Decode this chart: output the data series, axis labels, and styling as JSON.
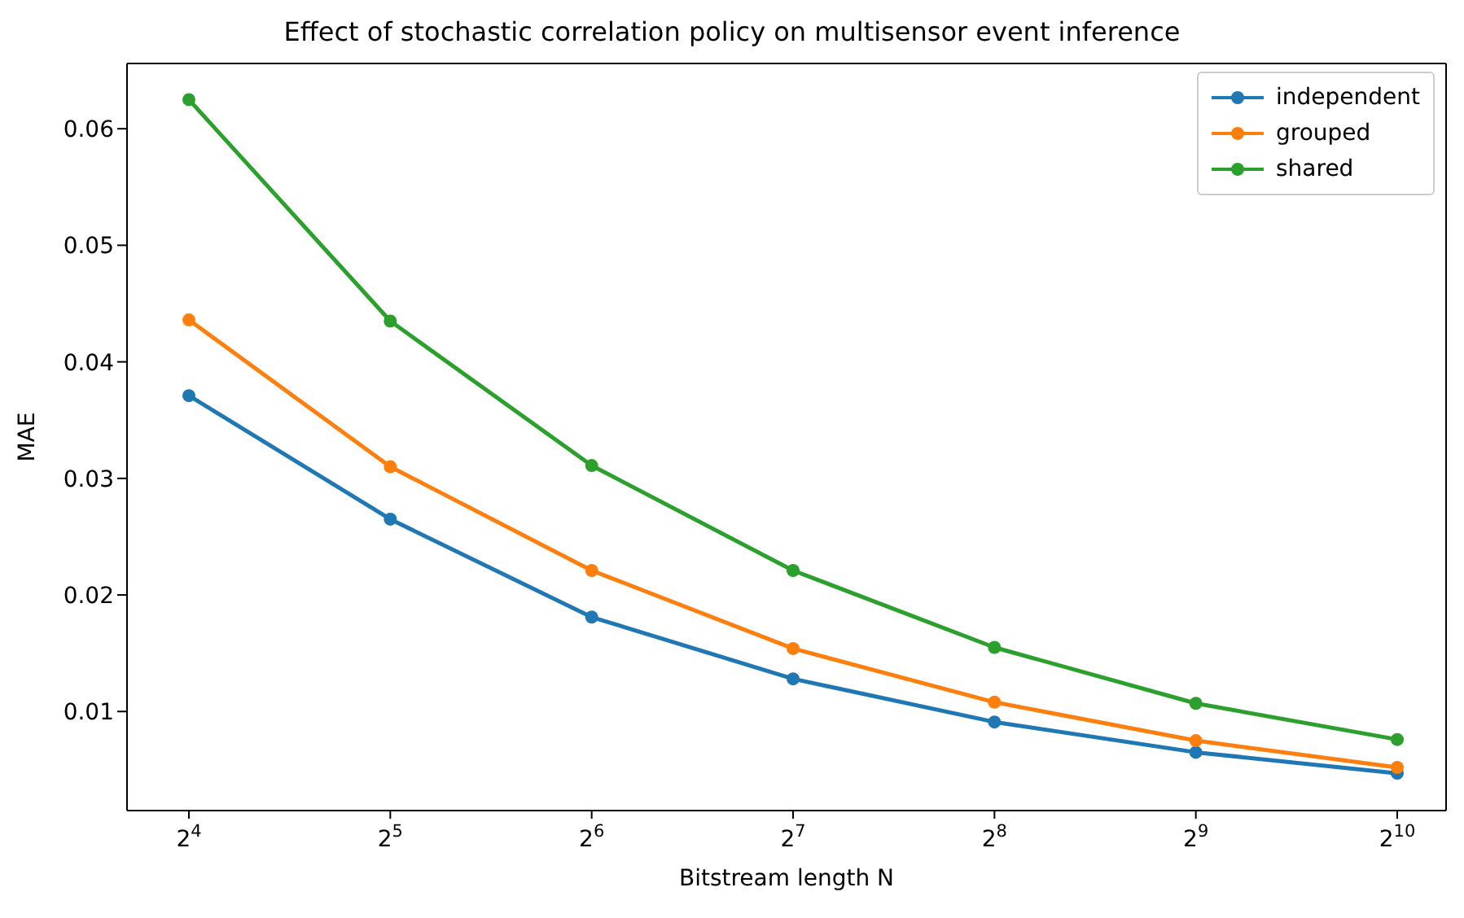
{
  "chart_data": {
    "type": "line",
    "title": "Effect of stochastic correlation policy on multisensor event inference",
    "xlabel": "Bitstream length N",
    "ylabel": "MAE",
    "categories": [
      "2$^{4}$",
      "2$^{5}$",
      "2$^{6}$",
      "2$^{7}$",
      "2$^{8}$",
      "2$^{9}$",
      "2$^{10}$"
    ],
    "series": [
      {
        "name": "independent",
        "color": "#1f77b4",
        "values": [
          0.0371,
          0.0265,
          0.0181,
          0.0128,
          0.0091,
          0.0065,
          0.0047
        ]
      },
      {
        "name": "grouped",
        "color": "#ff7f0e",
        "values": [
          0.0436,
          0.031,
          0.0221,
          0.0154,
          0.0108,
          0.0075,
          0.0052
        ]
      },
      {
        "name": "shared",
        "color": "#2ca02c",
        "values": [
          0.0625,
          0.0435,
          0.0311,
          0.0221,
          0.0155,
          0.0107,
          0.0076
        ]
      }
    ],
    "ylim": [
      0.0015,
      0.0656
    ],
    "yticks": [
      0.01,
      0.02,
      0.03,
      0.04,
      0.05,
      0.06
    ],
    "legend": "top right",
    "marker": "circle",
    "line_style": "solid"
  }
}
